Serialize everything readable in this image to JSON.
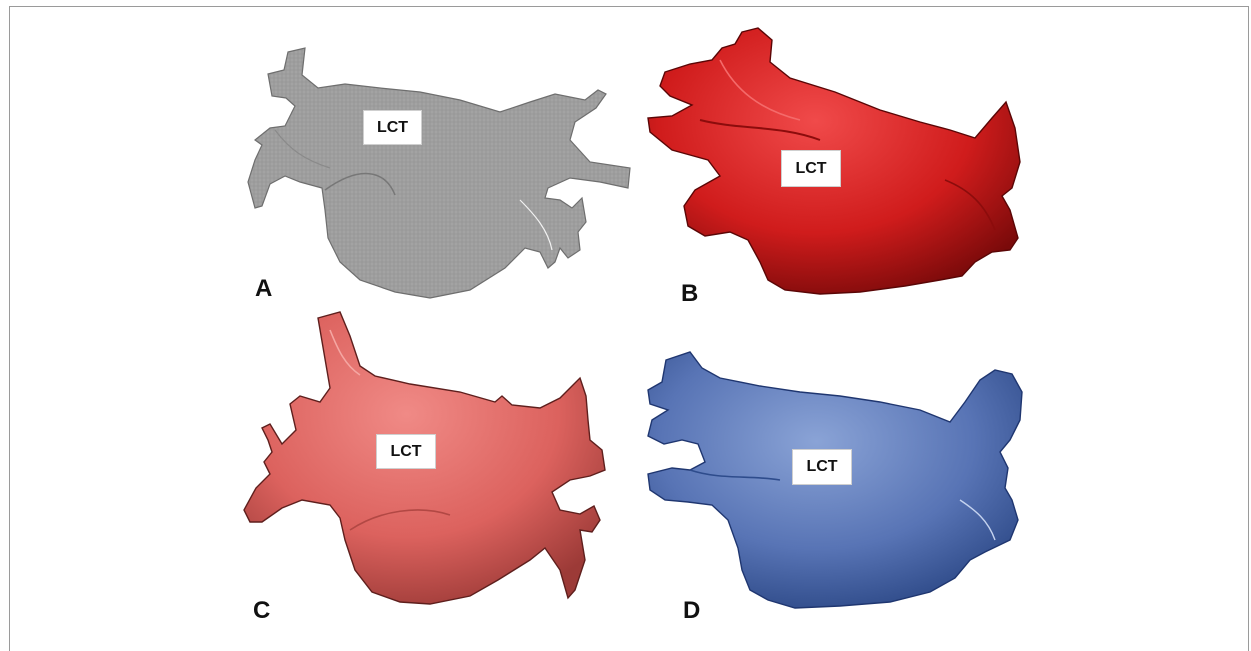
{
  "panels": [
    {
      "letter": "A",
      "label": "LCT",
      "color": "#9c9c9c"
    },
    {
      "letter": "B",
      "label": "LCT",
      "color": "#d42020"
    },
    {
      "letter": "C",
      "label": "LCT",
      "color": "#d9605c"
    },
    {
      "letter": "D",
      "label": "LCT",
      "color": "#5472b4"
    }
  ]
}
